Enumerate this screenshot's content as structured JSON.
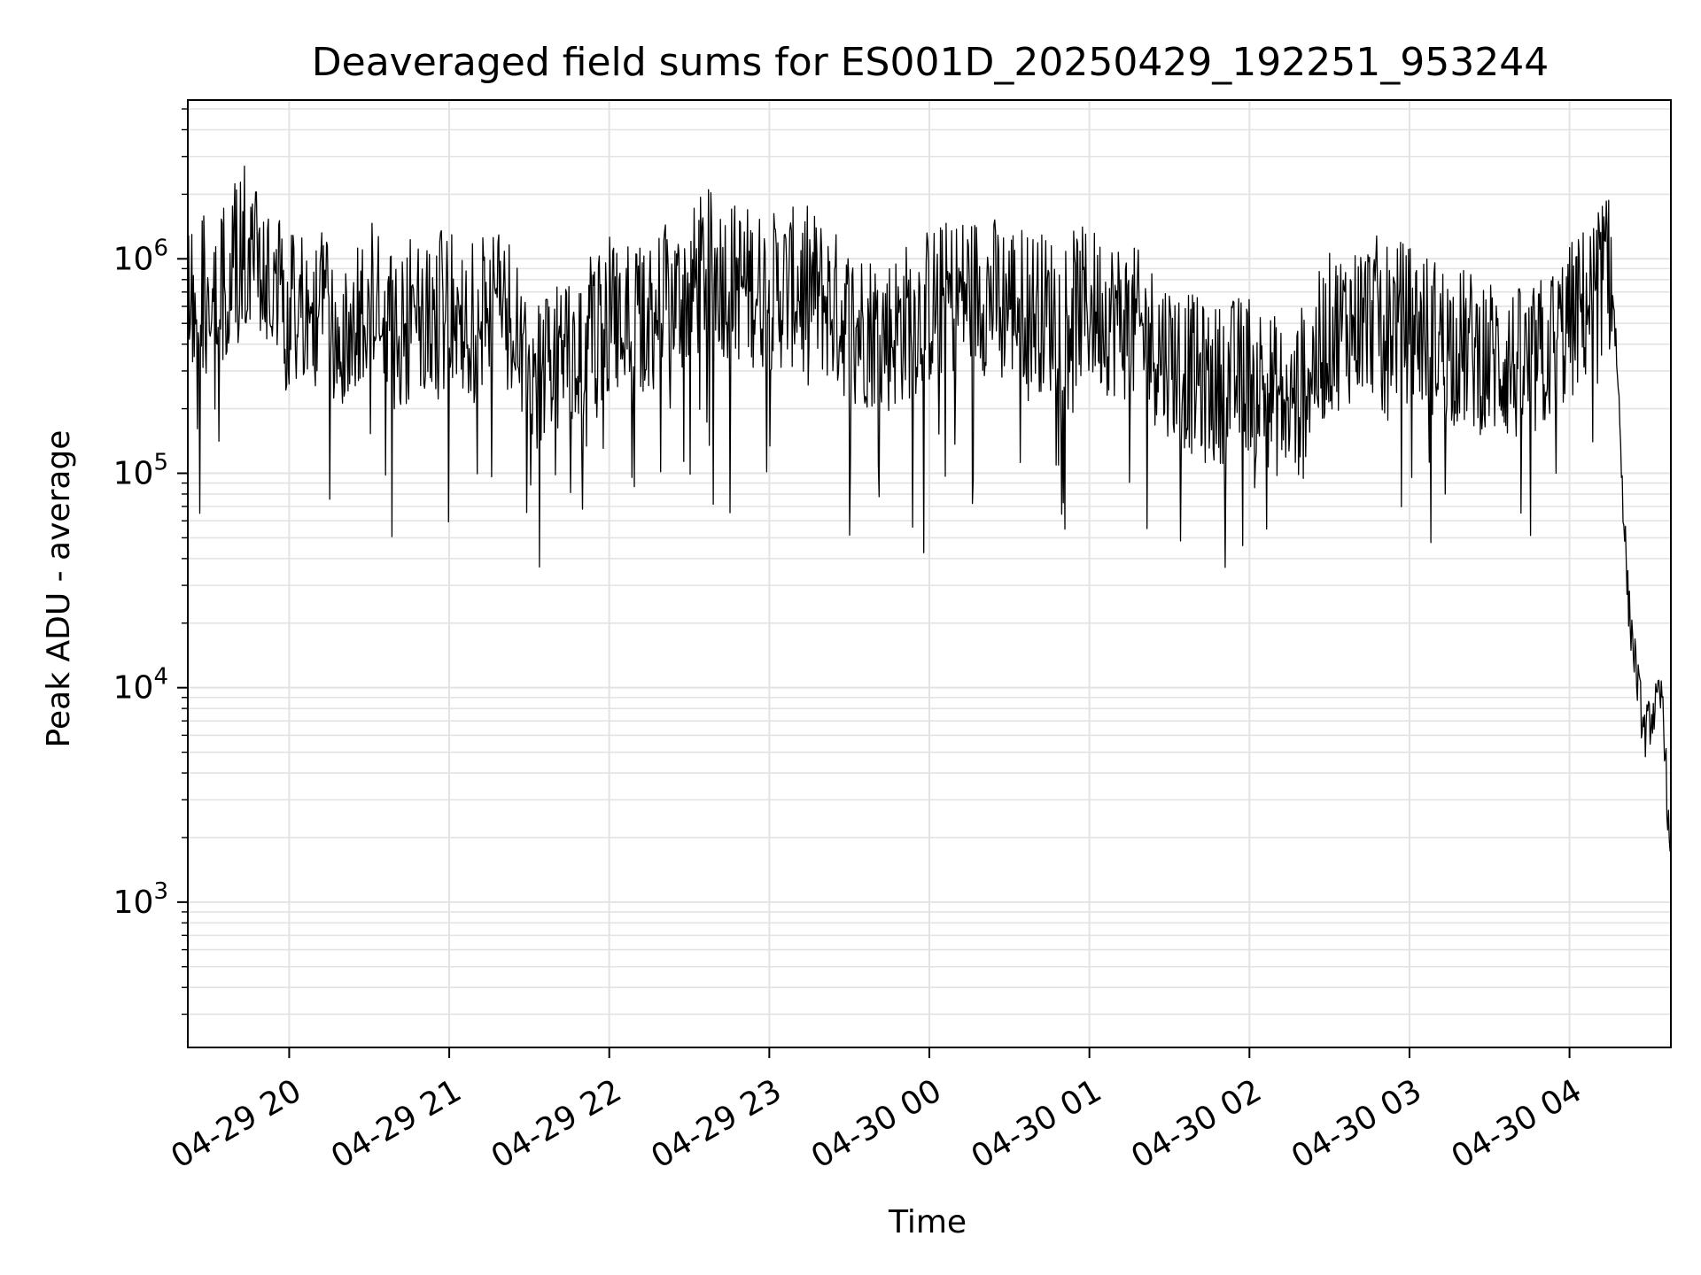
{
  "chart_data": {
    "type": "line",
    "title": "Deaveraged field sums for ES001D_20250429_192251_953244",
    "xlabel": "Time",
    "ylabel": "Peak ADU - average",
    "yscale": "log",
    "xlim": [
      "2025-04-29 19:22",
      "2025-04-30 04:38"
    ],
    "ylim": [
      210,
      5500000
    ],
    "grid": true,
    "line_color": "#000000",
    "x_ticks": [
      {
        "label": "04-29 20",
        "t": "2025-04-29 20:00"
      },
      {
        "label": "04-29 21",
        "t": "2025-04-29 21:00"
      },
      {
        "label": "04-29 22",
        "t": "2025-04-29 22:00"
      },
      {
        "label": "04-29 23",
        "t": "2025-04-29 23:00"
      },
      {
        "label": "04-30 00",
        "t": "2025-04-30 00:00"
      },
      {
        "label": "04-30 01",
        "t": "2025-04-30 01:00"
      },
      {
        "label": "04-30 02",
        "t": "2025-04-30 02:00"
      },
      {
        "label": "04-30 03",
        "t": "2025-04-30 03:00"
      },
      {
        "label": "04-30 04",
        "t": "2025-04-30 04:00"
      }
    ],
    "y_ticks": [
      {
        "base": "10",
        "exp": "3",
        "value": 1000
      },
      {
        "base": "10",
        "exp": "4",
        "value": 10000
      },
      {
        "base": "10",
        "exp": "5",
        "value": 100000
      },
      {
        "base": "10",
        "exp": "6",
        "value": 1000000
      }
    ],
    "series": [
      {
        "x": [
          "2025-04-29 19:22",
          "2025-04-29 19:30",
          "2025-04-29 19:36",
          "2025-04-29 19:42",
          "2025-04-29 19:50",
          "2025-04-29 20:00",
          "2025-04-29 20:10",
          "2025-04-29 20:20",
          "2025-04-29 20:30",
          "2025-04-29 20:40",
          "2025-04-29 20:50",
          "2025-04-29 21:00",
          "2025-04-29 21:10",
          "2025-04-29 21:20",
          "2025-04-29 21:30",
          "2025-04-29 21:40",
          "2025-04-29 21:50",
          "2025-04-29 22:00",
          "2025-04-29 22:10",
          "2025-04-29 22:20",
          "2025-04-29 22:30",
          "2025-04-29 22:36",
          "2025-04-29 22:45",
          "2025-04-29 23:00",
          "2025-04-29 23:15",
          "2025-04-29 23:30",
          "2025-04-29 23:45",
          "2025-04-30 00:00",
          "2025-04-30 00:15",
          "2025-04-30 00:30",
          "2025-04-30 00:45",
          "2025-04-30 01:00",
          "2025-04-30 01:15",
          "2025-04-30 01:30",
          "2025-04-30 01:45",
          "2025-04-30 02:00",
          "2025-04-30 02:15",
          "2025-04-30 02:30",
          "2025-04-30 02:45",
          "2025-04-30 03:00",
          "2025-04-30 03:15",
          "2025-04-30 03:30",
          "2025-04-30 03:45",
          "2025-04-30 04:00",
          "2025-04-30 04:10",
          "2025-04-30 04:13",
          "2025-04-30 04:16",
          "2025-04-30 04:18",
          "2025-04-30 04:20",
          "2025-04-30 04:22",
          "2025-04-30 04:25",
          "2025-04-30 04:28",
          "2025-04-30 04:32",
          "2025-04-30 04:35",
          "2025-04-30 04:38"
        ],
        "values": [
          650000,
          700000,
          750000,
          1200000,
          800000,
          550000,
          600000,
          500000,
          650000,
          450000,
          600000,
          550000,
          500000,
          600000,
          300000,
          350000,
          400000,
          550000,
          500000,
          600000,
          700000,
          900000,
          800000,
          700000,
          750000,
          500000,
          450000,
          600000,
          700000,
          650000,
          550000,
          600000,
          500000,
          350000,
          250000,
          300000,
          200000,
          450000,
          550000,
          500000,
          400000,
          350000,
          300000,
          500000,
          700000,
          900000,
          800000,
          300000,
          80000,
          25000,
          12000,
          6000,
          8000,
          9000,
          1200
        ]
      }
    ]
  }
}
